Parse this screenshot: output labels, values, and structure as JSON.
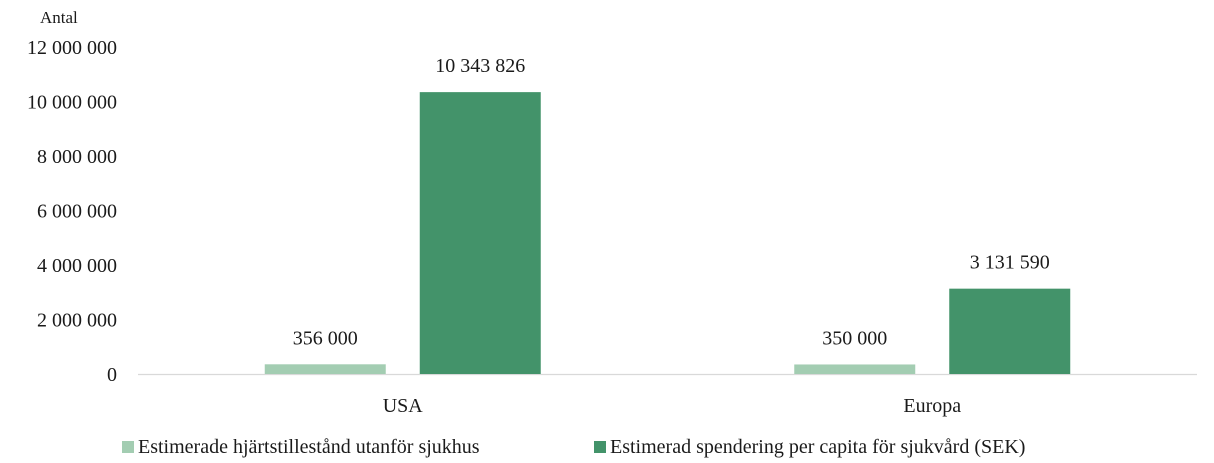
{
  "chart_data": {
    "type": "bar",
    "title": "",
    "ylabel": "Antal",
    "xlabel": "",
    "categories": [
      "USA",
      "Europa"
    ],
    "series": [
      {
        "name": "Estimerade hjärtstillestånd utanför sjukhus",
        "values": [
          356000,
          350000
        ],
        "labels": [
          "356 000",
          "350 000"
        ],
        "color": "#a3cdb2"
      },
      {
        "name": "Estimerad spendering per capita för sjukvård (SEK)",
        "values": [
          10343826,
          3131590
        ],
        "labels": [
          "10 343 826",
          "3 131 590"
        ],
        "color": "#43936a"
      }
    ],
    "ylim": [
      0,
      12000000
    ],
    "yticks": [
      0,
      2000000,
      4000000,
      6000000,
      8000000,
      10000000,
      12000000
    ],
    "ytick_labels": [
      "0",
      "2 000 000",
      "4 000 000",
      "6 000 000",
      "8 000 000",
      "10 000 000",
      "12 000 000"
    ],
    "grid": false,
    "legend": "bottom"
  }
}
